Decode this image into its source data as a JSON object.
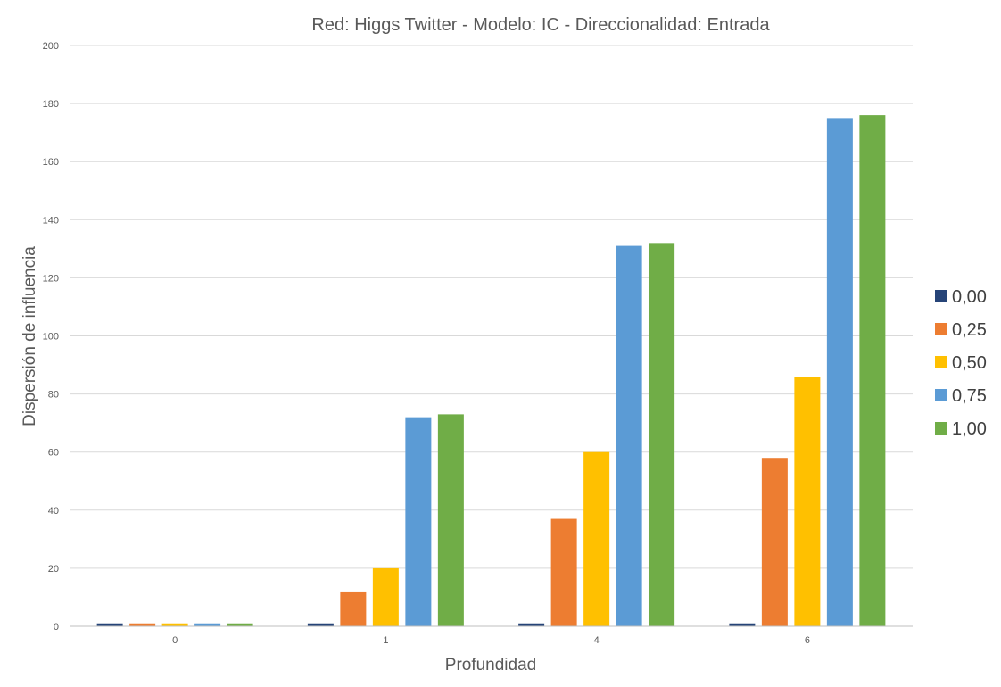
{
  "chart_data": {
    "type": "bar",
    "title": "Red: Higgs Twitter - Modelo: IC - Direccionalidad: Entrada",
    "xlabel": "Profundidad",
    "ylabel": "Dispersión de influencia",
    "categories": [
      "0",
      "1",
      "4",
      "6"
    ],
    "ylim": [
      0,
      200
    ],
    "yticks": [
      0,
      20,
      40,
      60,
      80,
      100,
      120,
      140,
      160,
      180,
      200
    ],
    "grid": true,
    "legend_position": "right",
    "series": [
      {
        "name": "0,00",
        "color": "#264478",
        "values": [
          1,
          1,
          1,
          1
        ]
      },
      {
        "name": "0,25",
        "color": "#ed7d31",
        "values": [
          1,
          12,
          37,
          58
        ]
      },
      {
        "name": "0,50",
        "color": "#ffc000",
        "values": [
          1,
          20,
          60,
          86
        ]
      },
      {
        "name": "0,75",
        "color": "#5b9bd5",
        "values": [
          1,
          72,
          131,
          175
        ]
      },
      {
        "name": "1,00",
        "color": "#70ad47",
        "values": [
          1,
          73,
          132,
          176
        ]
      }
    ]
  }
}
